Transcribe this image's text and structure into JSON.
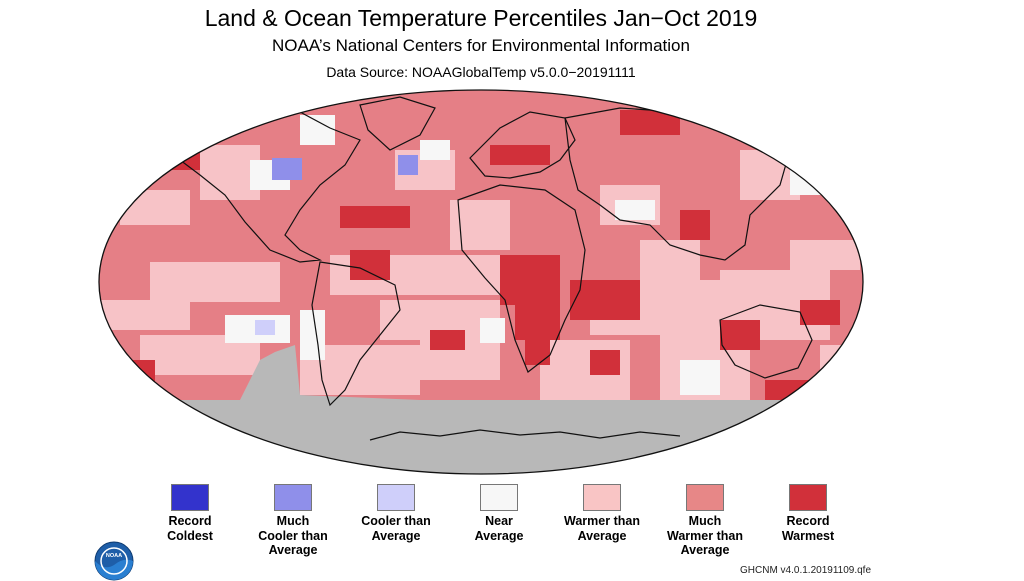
{
  "header": {
    "title": "Land & Ocean Temperature Percentiles Jan−Oct 2019",
    "subtitle": "NOAA’s National Centers for Environmental Information",
    "source": "Data Source: NOAAGlobalTemp v5.0.0−20191111"
  },
  "legend": [
    {
      "label_line1": "Record",
      "label_line2": "Coldest",
      "label_line3": "",
      "color": "#3333cc"
    },
    {
      "label_line1": "Much",
      "label_line2": "Cooler than",
      "label_line3": "Average",
      "color": "#8f8fea"
    },
    {
      "label_line1": "Cooler than",
      "label_line2": "Average",
      "label_line3": "",
      "color": "#cfcffa"
    },
    {
      "label_line1": "Near",
      "label_line2": "Average",
      "label_line3": "",
      "color": "#f7f7f7"
    },
    {
      "label_line1": "Warmer than",
      "label_line2": "Average",
      "label_line3": "",
      "color": "#f9c5c5"
    },
    {
      "label_line1": "Much",
      "label_line2": "Warmer than",
      "label_line3": "Average",
      "color": "#e78787"
    },
    {
      "label_line1": "Record",
      "label_line2": "Warmest",
      "label_line3": "",
      "color": "#d1303a"
    }
  ],
  "colors": {
    "no_data": "#b8b8b8",
    "ocean_base": "#e57f86",
    "record_warmest": "#d1303a",
    "warmer": "#f7c3c7",
    "near": "#f7f7f7",
    "cooler": "#cfcffa",
    "much_cooler": "#8f8fea"
  },
  "logo": {
    "icon": "noaa-logo-icon",
    "text": "NOAA"
  },
  "footer": {
    "text": "GHCNM v4.0.1.20191109.qfe"
  }
}
